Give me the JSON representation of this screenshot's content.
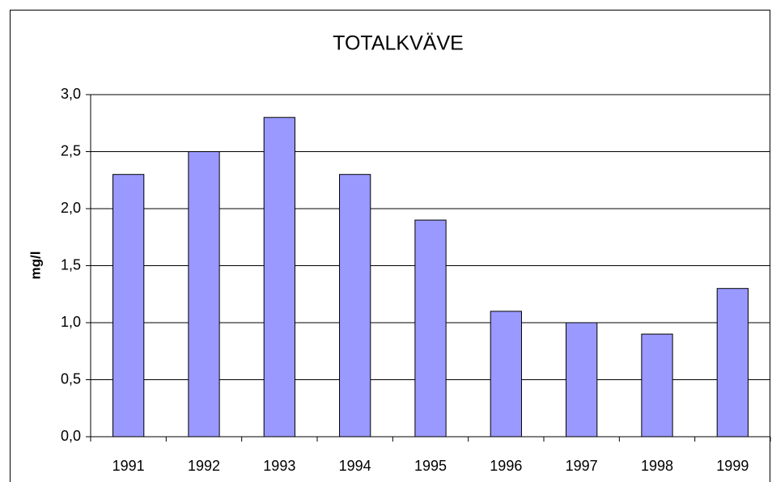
{
  "chart_data": {
    "type": "bar",
    "title": "TOTALKVÄVE",
    "y_label": "mg/l",
    "categories": [
      "1991",
      "1992",
      "1993",
      "1994",
      "1995",
      "1996",
      "1997",
      "1998",
      "1999"
    ],
    "values": [
      2.3,
      2.5,
      2.8,
      2.3,
      1.9,
      1.1,
      1.0,
      0.9,
      1.3
    ],
    "color": "#9999ff",
    "ylim": [
      0,
      3
    ],
    "yticks": [
      {
        "value": 0,
        "label": "0,0"
      },
      {
        "value": 0.5,
        "label": "0,5"
      },
      {
        "value": 1,
        "label": "1,0"
      },
      {
        "value": 1.5,
        "label": "1,5"
      },
      {
        "value": 2,
        "label": "2,0"
      },
      {
        "value": 2.5,
        "label": "2,5"
      },
      {
        "value": 3,
        "label": "3,0"
      }
    ],
    "grid": true
  }
}
